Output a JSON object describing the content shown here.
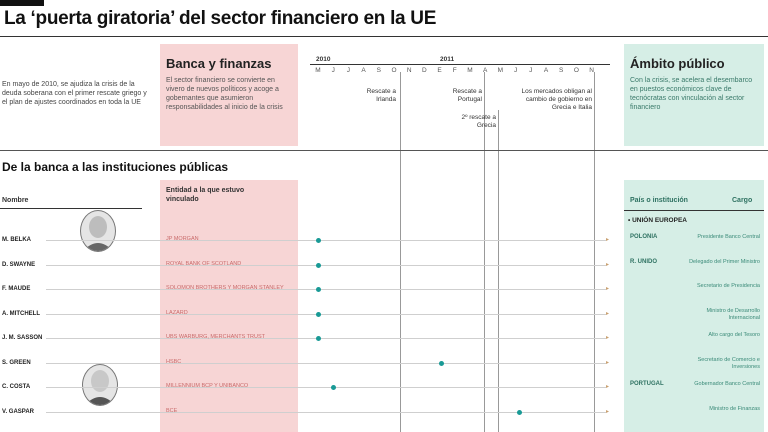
{
  "title": "La ‘puerta giratoria’ del sector financiero en la UE",
  "intro": "En mayo de 2010, se ajudiza la crisis de la deuda soberana con el primer rescate griego y el plan de ajustes coordinados en toda la UE",
  "banca": {
    "title": "Banca y finanzas",
    "text": "El sector financiero se convierte en vivero de nuevos políticos y acoge a gobernantes que asumieron responsabilidades al inicio de la crisis"
  },
  "ambito": {
    "title": "Ámbito público",
    "text": "Con la crisis, se acelera el desembarco en puestos económicos clave de tecnócratas con vinculación al sector financiero"
  },
  "timeline": {
    "years": [
      "2010",
      "2011"
    ],
    "months": [
      "M",
      "J",
      "J",
      "A",
      "S",
      "O",
      "N",
      "D",
      "E",
      "F",
      "M",
      "A",
      "M",
      "J",
      "J",
      "A",
      "S",
      "O",
      "N"
    ],
    "events": [
      "Rescate a Irlanda",
      "Rescate a Portugal",
      "2º rescate a Grecia",
      "Los mercados obligan al cambio de gobierno en Grecia e Italia"
    ]
  },
  "section_title": "De la banca a las instituciones públicas",
  "headers": {
    "nombre": "Nombre",
    "entidad": "Entidad a la que estuvo vinculado",
    "pais": "País o institución",
    "cargo": "Cargo"
  },
  "union_label": "• UNIÓN EUROPEA",
  "rows": [
    {
      "name": "M. BELKA",
      "entity": "JP MORGAN",
      "country": "POLONIA",
      "cargo": "Presidente Banco Central"
    },
    {
      "name": "D. SWAYNE",
      "entity": "ROYAL BANK OF SCOTLAND",
      "country": "R. UNIDO",
      "cargo": "Delegado del Primer Ministro"
    },
    {
      "name": "F. MAUDE",
      "entity": "SOLOMON BROTHERS Y MORGAN STANLEY",
      "country": "",
      "cargo": "Secretario de Presidencia"
    },
    {
      "name": "A. MITCHELL",
      "entity": "LAZARD",
      "country": "",
      "cargo": "Ministro de Desarrollo Internacional"
    },
    {
      "name": "J. M. SASSON",
      "entity": "UBS WARBURG, MERCHANTS TRUST",
      "country": "",
      "cargo": "Alto cargo del Tesoro"
    },
    {
      "name": "S. GREEN",
      "entity": "HSBC",
      "country": "",
      "cargo": "Secretario de Comercio e Inversiones"
    },
    {
      "name": "C. COSTA",
      "entity": "MILLENNIUM BCP Y UNIBANCO",
      "country": "PORTUGAL",
      "cargo": "Gobernador Banco Central"
    },
    {
      "name": "V. GASPAR",
      "entity": "BCE",
      "country": "",
      "cargo": "Ministro de Finanzas"
    }
  ],
  "colors": {
    "pink": "#f7d5d5",
    "green": "#d6eee6",
    "dot": "#199a96"
  }
}
